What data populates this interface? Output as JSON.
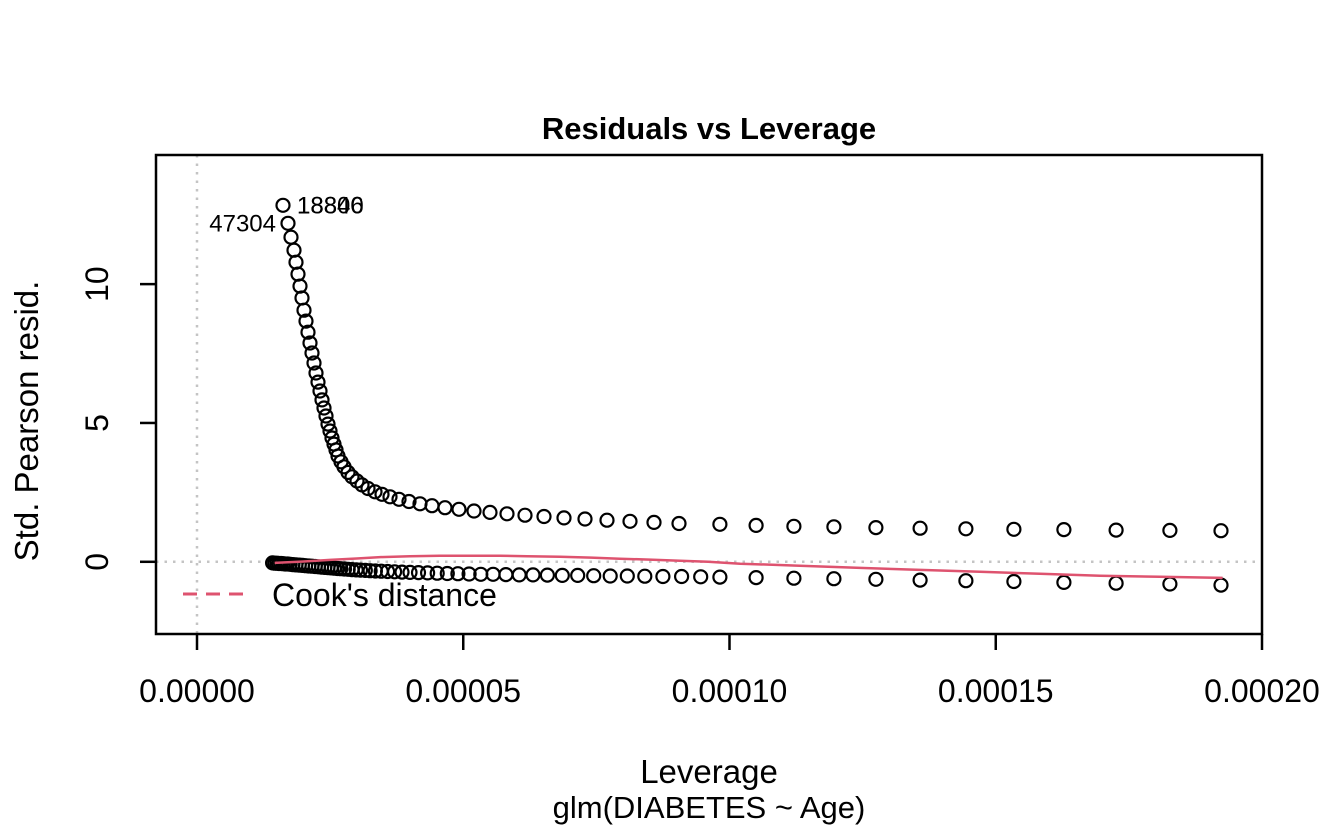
{
  "figure": {
    "title": "Residuals vs Leverage",
    "x_axis_label": "Leverage",
    "y_axis_label": "Std. Pearson resid.",
    "subtitle": "glm(DIABETES ~ Age)",
    "legend_label": "Cook's distance",
    "colors": {
      "points": "#000000",
      "smooth_line": "#de536f",
      "reference_dotted": "#c4c4c4",
      "axis": "#000000",
      "background": "#ffffff"
    }
  },
  "chart_data": {
    "type": "scatter",
    "title": "Residuals vs Leverage",
    "xlabel": "Leverage",
    "ylabel": "Std. Pearson resid.",
    "subtitle": "glm(DIABETES ~ Age)",
    "xlim": [
      -7.7e-06,
      0.0002
    ],
    "ylim": [
      -2.6,
      14.65
    ],
    "grid": false,
    "x_ticks": {
      "values": [
        0.0,
        5e-05,
        0.0001,
        0.00015,
        0.0002
      ],
      "labels": [
        "0.00000",
        "0.00005",
        "0.00010",
        "0.00015",
        "0.00020"
      ]
    },
    "y_ticks": {
      "values": [
        0,
        5,
        10
      ],
      "labels": [
        "0",
        "5",
        "10"
      ]
    },
    "reference_lines": {
      "horizontal_at": 0,
      "vertical_at": 0,
      "style": "dotted",
      "color": "#c4c4c4"
    },
    "legend": {
      "label": "Cook's distance",
      "line_color": "#de536f",
      "line_style": "dashed",
      "position": "bottom-left"
    },
    "point_labels": [
      {
        "text": "18840",
        "x": 1.615e-05,
        "y": 12.84,
        "side": "right"
      },
      {
        "text": "18806",
        "x": 1.615e-05,
        "y": 12.84,
        "side": "right"
      },
      {
        "text": "47304",
        "x": 1.709e-05,
        "y": 12.19,
        "side": "left"
      }
    ],
    "series": [
      {
        "name": "upper-branch-points",
        "marker": "circle",
        "color": "#000000",
        "points": [
          [
            1.615e-05,
            12.84
          ],
          [
            1.709e-05,
            12.19
          ],
          [
            1.765e-05,
            11.69
          ],
          [
            1.822e-05,
            11.22
          ],
          [
            1.859e-05,
            10.79
          ],
          [
            1.897e-05,
            10.36
          ],
          [
            1.934e-05,
            9.93
          ],
          [
            1.972e-05,
            9.5
          ],
          [
            2.009e-05,
            9.06
          ],
          [
            2.047e-05,
            8.67
          ],
          [
            2.085e-05,
            8.27
          ],
          [
            2.122e-05,
            7.88
          ],
          [
            2.16e-05,
            7.52
          ],
          [
            2.197e-05,
            7.16
          ],
          [
            2.235e-05,
            6.8
          ],
          [
            2.272e-05,
            6.47
          ],
          [
            2.31e-05,
            6.15
          ],
          [
            2.347e-05,
            5.83
          ],
          [
            2.385e-05,
            5.54
          ],
          [
            2.423e-05,
            5.25
          ],
          [
            2.46e-05,
            4.96
          ],
          [
            2.498e-05,
            4.71
          ],
          [
            2.535e-05,
            4.46
          ],
          [
            2.573e-05,
            4.24
          ],
          [
            2.61e-05,
            4.03
          ],
          [
            2.648e-05,
            3.81
          ],
          [
            2.704e-05,
            3.6
          ],
          [
            2.761e-05,
            3.42
          ],
          [
            2.836e-05,
            3.22
          ],
          [
            2.911e-05,
            3.06
          ],
          [
            3.005e-05,
            2.91
          ],
          [
            3.099e-05,
            2.77
          ],
          [
            3.211e-05,
            2.64
          ],
          [
            3.343e-05,
            2.52
          ],
          [
            3.474e-05,
            2.43
          ],
          [
            3.624e-05,
            2.34
          ],
          [
            3.793e-05,
            2.25
          ],
          [
            3.981e-05,
            2.17
          ],
          [
            4.188e-05,
            2.09
          ],
          [
            4.413e-05,
            2.02
          ],
          [
            4.657e-05,
            1.95
          ],
          [
            4.92e-05,
            1.89
          ],
          [
            5.202e-05,
            1.83
          ],
          [
            5.502e-05,
            1.78
          ],
          [
            5.822e-05,
            1.73
          ],
          [
            6.16e-05,
            1.68
          ],
          [
            6.516e-05,
            1.63
          ],
          [
            6.892e-05,
            1.58
          ],
          [
            7.286e-05,
            1.54
          ],
          [
            7.7e-05,
            1.5
          ],
          [
            8.131e-05,
            1.46
          ],
          [
            8.582e-05,
            1.42
          ],
          [
            9.052e-05,
            1.38
          ],
          [
            9.82e-05,
            1.35
          ],
          [
            0.000105,
            1.31
          ],
          [
            0.0001121,
            1.28
          ],
          [
            0.0001196,
            1.26
          ],
          [
            0.0001275,
            1.23
          ],
          [
            0.0001358,
            1.21
          ],
          [
            0.0001444,
            1.19
          ],
          [
            0.0001534,
            1.17
          ],
          [
            0.0001628,
            1.16
          ],
          [
            0.0001726,
            1.14
          ],
          [
            0.0001827,
            1.13
          ],
          [
            0.0001923,
            1.12
          ]
        ]
      },
      {
        "name": "lower-branch-points",
        "marker": "circle",
        "color": "#000000",
        "points": [
          [
            1.42e-05,
            -0.04
          ],
          [
            1.46e-05,
            -0.05
          ],
          [
            1.5e-05,
            -0.05
          ],
          [
            1.54e-05,
            -0.06
          ],
          [
            1.58e-05,
            -0.06
          ],
          [
            1.62e-05,
            -0.07
          ],
          [
            1.66e-05,
            -0.08
          ],
          [
            1.7e-05,
            -0.08
          ],
          [
            1.75e-05,
            -0.09
          ],
          [
            1.8e-05,
            -0.1
          ],
          [
            1.86e-05,
            -0.11
          ],
          [
            1.92e-05,
            -0.12
          ],
          [
            1.98e-05,
            -0.13
          ],
          [
            2.04e-05,
            -0.14
          ],
          [
            2.1e-05,
            -0.15
          ],
          [
            2.16e-05,
            -0.16
          ],
          [
            2.22e-05,
            -0.17
          ],
          [
            2.28e-05,
            -0.18
          ],
          [
            2.34e-05,
            -0.19
          ],
          [
            2.4e-05,
            -0.2
          ],
          [
            2.46e-05,
            -0.21
          ],
          [
            2.52e-05,
            -0.22
          ],
          [
            2.58e-05,
            -0.23
          ],
          [
            2.64e-05,
            -0.24
          ],
          [
            2.7e-05,
            -0.25
          ],
          [
            2.77e-05,
            -0.26
          ],
          [
            2.84e-05,
            -0.27
          ],
          [
            2.91e-05,
            -0.28
          ],
          [
            2.99e-05,
            -0.29
          ],
          [
            3.07e-05,
            -0.3
          ],
          [
            3.16e-05,
            -0.31
          ],
          [
            3.25e-05,
            -0.32
          ],
          [
            3.35e-05,
            -0.33
          ],
          [
            3.46e-05,
            -0.34
          ],
          [
            3.58e-05,
            -0.35
          ],
          [
            3.71e-05,
            -0.36
          ],
          [
            3.85e-05,
            -0.37
          ],
          [
            4e-05,
            -0.38
          ],
          [
            4.16e-05,
            -0.39
          ],
          [
            4.33e-05,
            -0.4
          ],
          [
            4.51e-05,
            -0.41
          ],
          [
            4.7e-05,
            -0.42
          ],
          [
            4.9e-05,
            -0.43
          ],
          [
            5.11e-05,
            -0.44
          ],
          [
            5.33e-05,
            -0.45
          ],
          [
            5.56e-05,
            -0.45
          ],
          [
            5.8e-05,
            -0.46
          ],
          [
            6.05e-05,
            -0.47
          ],
          [
            6.31e-05,
            -0.47
          ],
          [
            6.58e-05,
            -0.48
          ],
          [
            6.86e-05,
            -0.49
          ],
          [
            7.15e-05,
            -0.49
          ],
          [
            7.45e-05,
            -0.5
          ],
          [
            7.76e-05,
            -0.51
          ],
          [
            8.08e-05,
            -0.51
          ],
          [
            8.41e-05,
            -0.52
          ],
          [
            8.75e-05,
            -0.53
          ],
          [
            9.1e-05,
            -0.53
          ],
          [
            9.46e-05,
            -0.54
          ],
          [
            9.82e-05,
            -0.55
          ],
          [
            0.000105,
            -0.57
          ],
          [
            0.0001121,
            -0.59
          ],
          [
            0.0001196,
            -0.61
          ],
          [
            0.0001275,
            -0.63
          ],
          [
            0.0001358,
            -0.66
          ],
          [
            0.0001444,
            -0.68
          ],
          [
            0.0001534,
            -0.71
          ],
          [
            0.0001628,
            -0.74
          ],
          [
            0.0001726,
            -0.77
          ],
          [
            0.0001827,
            -0.8
          ],
          [
            0.0001923,
            -0.84
          ]
        ]
      },
      {
        "name": "smooth-line",
        "type": "line",
        "color": "#de536f",
        "points": [
          [
            1.46e-05,
            -0.04
          ],
          [
            2e-05,
            0.01
          ],
          [
            2.5e-05,
            0.07
          ],
          [
            3e-05,
            0.12
          ],
          [
            3.44e-05,
            0.17
          ],
          [
            4e-05,
            0.2
          ],
          [
            4.56e-05,
            0.22
          ],
          [
            5.1e-05,
            0.22
          ],
          [
            5.69e-05,
            0.22
          ],
          [
            6.2e-05,
            0.2
          ],
          [
            6.82e-05,
            0.18
          ],
          [
            7.4e-05,
            0.15
          ],
          [
            7.94e-05,
            0.11
          ],
          [
            8.5e-05,
            0.08
          ],
          [
            9.07e-05,
            0.04
          ],
          [
            9.6e-05,
            0.0
          ],
          [
            0.000102,
            -0.07
          ],
          [
            0.0001132,
            -0.14
          ],
          [
            0.0001245,
            -0.22
          ],
          [
            0.0001358,
            -0.29
          ],
          [
            0.000147,
            -0.36
          ],
          [
            0.0001583,
            -0.43
          ],
          [
            0.0001696,
            -0.5
          ],
          [
            0.0001808,
            -0.54
          ],
          [
            0.0001926,
            -0.58
          ]
        ]
      }
    ]
  }
}
